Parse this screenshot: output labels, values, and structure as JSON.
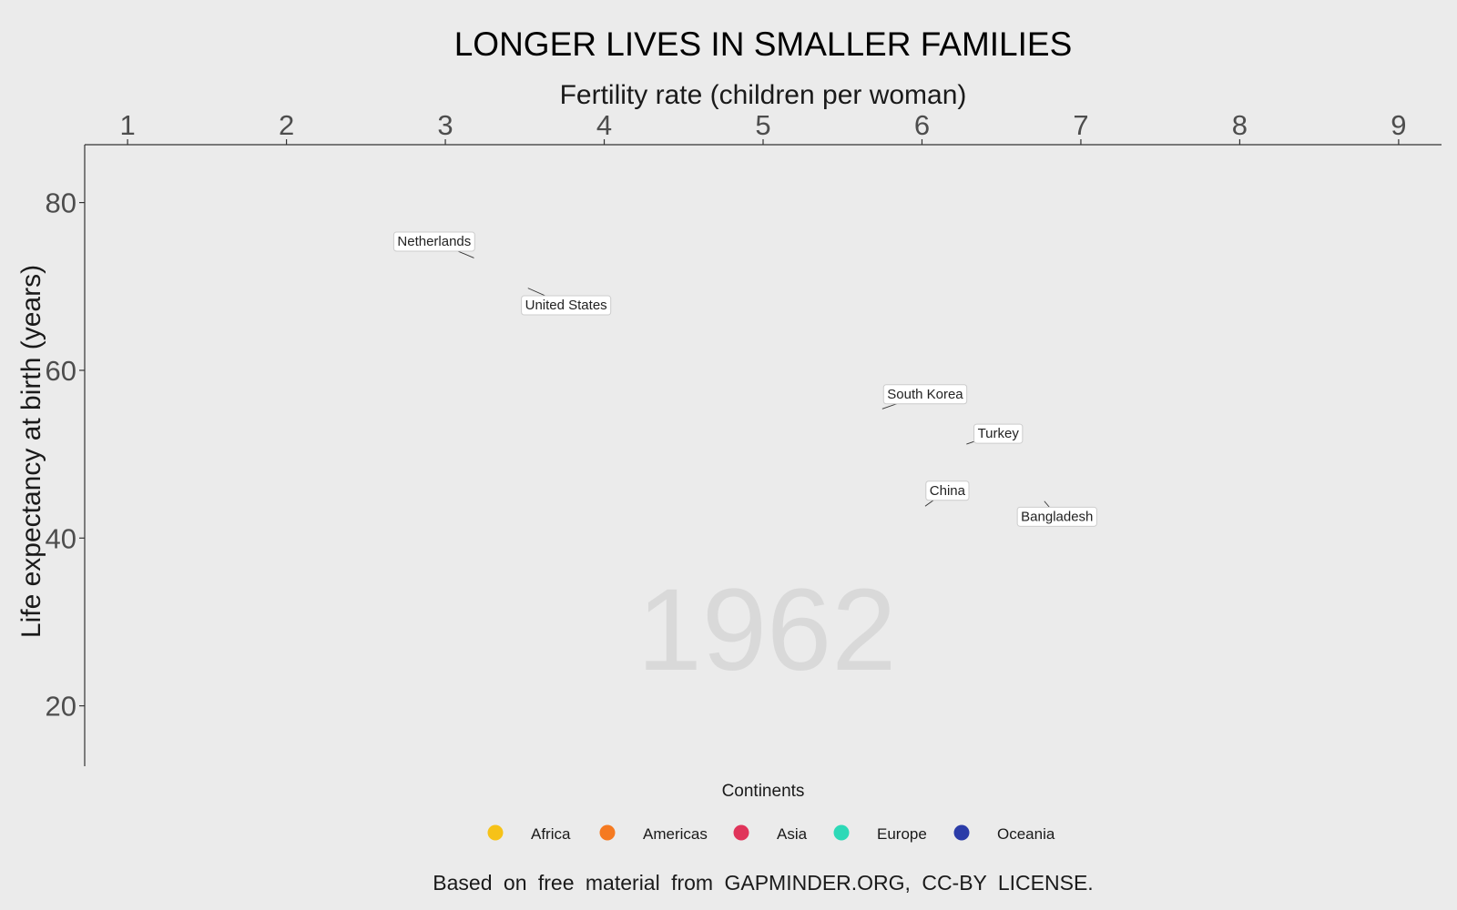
{
  "chart_data": {
    "type": "scatter",
    "title": "LONGER LIVES IN SMALLER FAMILIES",
    "xlabel": "Fertility rate (children per woman)",
    "ylabel": "Life expectancy at birth (years)",
    "xlim": [
      0.73,
      9.27
    ],
    "ylim": [
      12.8,
      86.9
    ],
    "x_ticks": [
      1,
      2,
      3,
      4,
      5,
      6,
      7,
      8,
      9
    ],
    "y_ticks": [
      20,
      40,
      60,
      80
    ],
    "x_axis_position": "top",
    "grid": false,
    "year": "1962",
    "year_color": "#d9d9d9",
    "points": [
      {
        "label": "Netherlands",
        "x": 3.18,
        "y": 73.4,
        "label_x": 2.93,
        "label_y": 75.4
      },
      {
        "label": "United States",
        "x": 3.52,
        "y": 69.8,
        "label_x": 3.76,
        "label_y": 67.8
      },
      {
        "label": "South Korea",
        "x": 5.75,
        "y": 55.4,
        "label_x": 6.02,
        "label_y": 57.2
      },
      {
        "label": "Turkey",
        "x": 6.28,
        "y": 51.2,
        "label_x": 6.48,
        "label_y": 52.5
      },
      {
        "label": "China",
        "x": 6.02,
        "y": 43.8,
        "label_x": 6.16,
        "label_y": 45.7
      },
      {
        "label": "Bangladesh",
        "x": 6.77,
        "y": 44.4,
        "label_x": 6.85,
        "label_y": 42.6
      }
    ],
    "legend": {
      "title": "Continents",
      "position": "bottom",
      "items": [
        {
          "name": "Africa",
          "color": "#f6c218"
        },
        {
          "name": "Americas",
          "color": "#f57a21"
        },
        {
          "name": "Asia",
          "color": "#e0345a"
        },
        {
          "name": "Europe",
          "color": "#2dd9b7"
        },
        {
          "name": "Oceania",
          "color": "#2b3ca8"
        }
      ]
    },
    "caption": "Based on free material from GAPMINDER.ORG,  CC-BY LICENSE."
  }
}
